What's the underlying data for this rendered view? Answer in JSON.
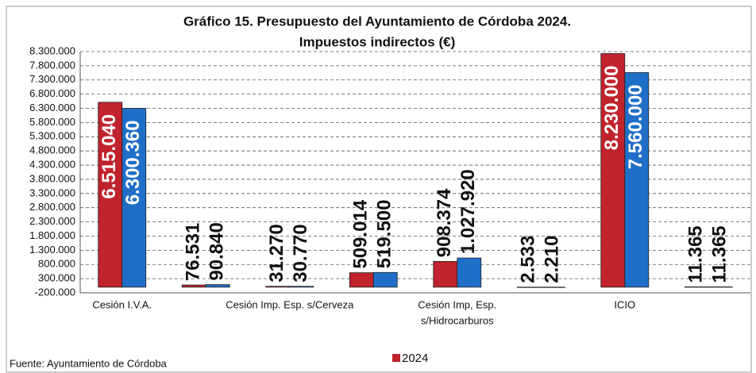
{
  "chart_data": {
    "type": "bar",
    "title": [
      "Gráfico 15. Presupuesto del Ayuntamiento de Córdoba 2024.",
      "Impuestos indirectos (€)"
    ],
    "categories": [
      "Cesión I.V.A.",
      null,
      "Cesión Imp. Esp. s/Cerveza",
      null,
      [
        "Cesión Imp, Esp.",
        "s/Hidrocarburos"
      ],
      null,
      "ICIO",
      null
    ],
    "series": [
      {
        "name": "2024",
        "color": "#c0232c",
        "values": [
          6515040,
          76531,
          31270,
          509014,
          908374,
          2533,
          8230000,
          11365
        ],
        "value_labels": [
          "6.515.040",
          "76.531",
          "31.270",
          "509.014",
          "908.374",
          "2.533",
          "8.230.000",
          "11.365"
        ]
      },
      {
        "color": "#1f6fc9",
        "values": [
          6300360,
          90840,
          30770,
          519500,
          1027920,
          2210,
          7560000,
          11365
        ],
        "value_labels": [
          "6.300.360",
          "90.840",
          "30.770",
          "519.500",
          "1.027.920",
          "2.210",
          "7.560.000",
          "11.365"
        ]
      }
    ],
    "ylim": [
      -200000,
      8300000
    ],
    "yticks": [
      {
        "value": -200000,
        "label": "-200.000"
      },
      {
        "value": 300000,
        "label": "300.000"
      },
      {
        "value": 800000,
        "label": "800.000"
      },
      {
        "value": 1300000,
        "label": "1.300.000"
      },
      {
        "value": 1800000,
        "label": "1.800.000"
      },
      {
        "value": 2300000,
        "label": "2.300.000"
      },
      {
        "value": 2800000,
        "label": "2.800.000"
      },
      {
        "value": 3300000,
        "label": "3.300.000"
      },
      {
        "value": 3800000,
        "label": "3.800.000"
      },
      {
        "value": 4300000,
        "label": "4.300.000"
      },
      {
        "value": 4800000,
        "label": "4.800.000"
      },
      {
        "value": 5300000,
        "label": "5.300.000"
      },
      {
        "value": 5800000,
        "label": "5.800.000"
      },
      {
        "value": 6300000,
        "label": "6.300.000"
      },
      {
        "value": 6800000,
        "label": "6.800.000"
      },
      {
        "value": 7300000,
        "label": "7.300.000"
      },
      {
        "value": 7800000,
        "label": "7.800.000"
      },
      {
        "value": 8300000,
        "label": "8.300.000"
      }
    ],
    "grid": true,
    "legend": "bottom",
    "source": "Fuente: Ayuntamiento de Córdoba"
  }
}
